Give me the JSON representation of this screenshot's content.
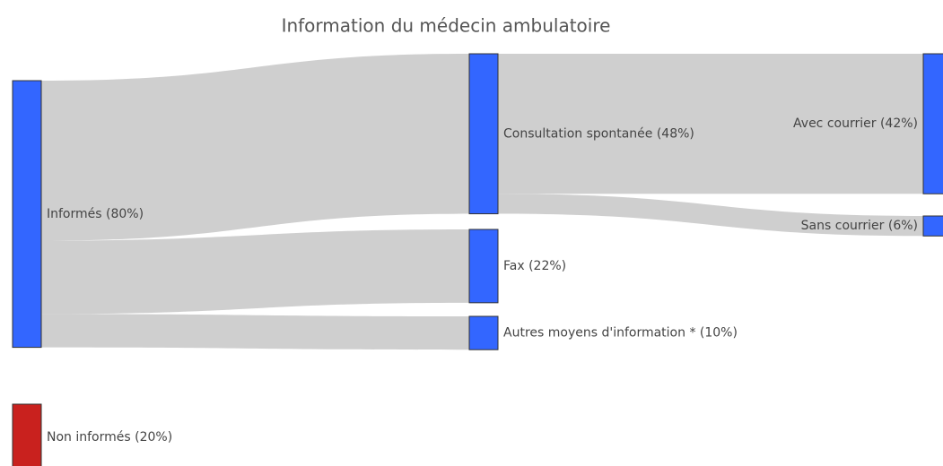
{
  "chart_data": {
    "type": "sankey",
    "title": "Information du médecin ambulatoire",
    "nodes": [
      {
        "label": "Informés (80%)",
        "value": 80,
        "color": "#3366ff"
      },
      {
        "label": "Non informés (20%)",
        "value": 20,
        "color": "#c9211e"
      },
      {
        "label": "Consultation spontanée (48%)",
        "value": 48,
        "color": "#3366ff"
      },
      {
        "label": "Fax (22%)",
        "value": 22,
        "color": "#3366ff"
      },
      {
        "label": "Autres moyens d'information * (10%)",
        "value": 10,
        "color": "#3366ff"
      },
      {
        "label": "Avec courrier (42%)",
        "value": 42,
        "color": "#3366ff"
      },
      {
        "label": "Sans courrier (6%)",
        "value": 6,
        "color": "#3366ff"
      }
    ],
    "links": [
      {
        "source": 0,
        "target": 2,
        "value": 48
      },
      {
        "source": 0,
        "target": 3,
        "value": 22
      },
      {
        "source": 0,
        "target": 4,
        "value": 10
      },
      {
        "source": 2,
        "target": 5,
        "value": 42
      },
      {
        "source": 2,
        "target": 6,
        "value": 6
      }
    ],
    "link_color": "#cccccc"
  }
}
